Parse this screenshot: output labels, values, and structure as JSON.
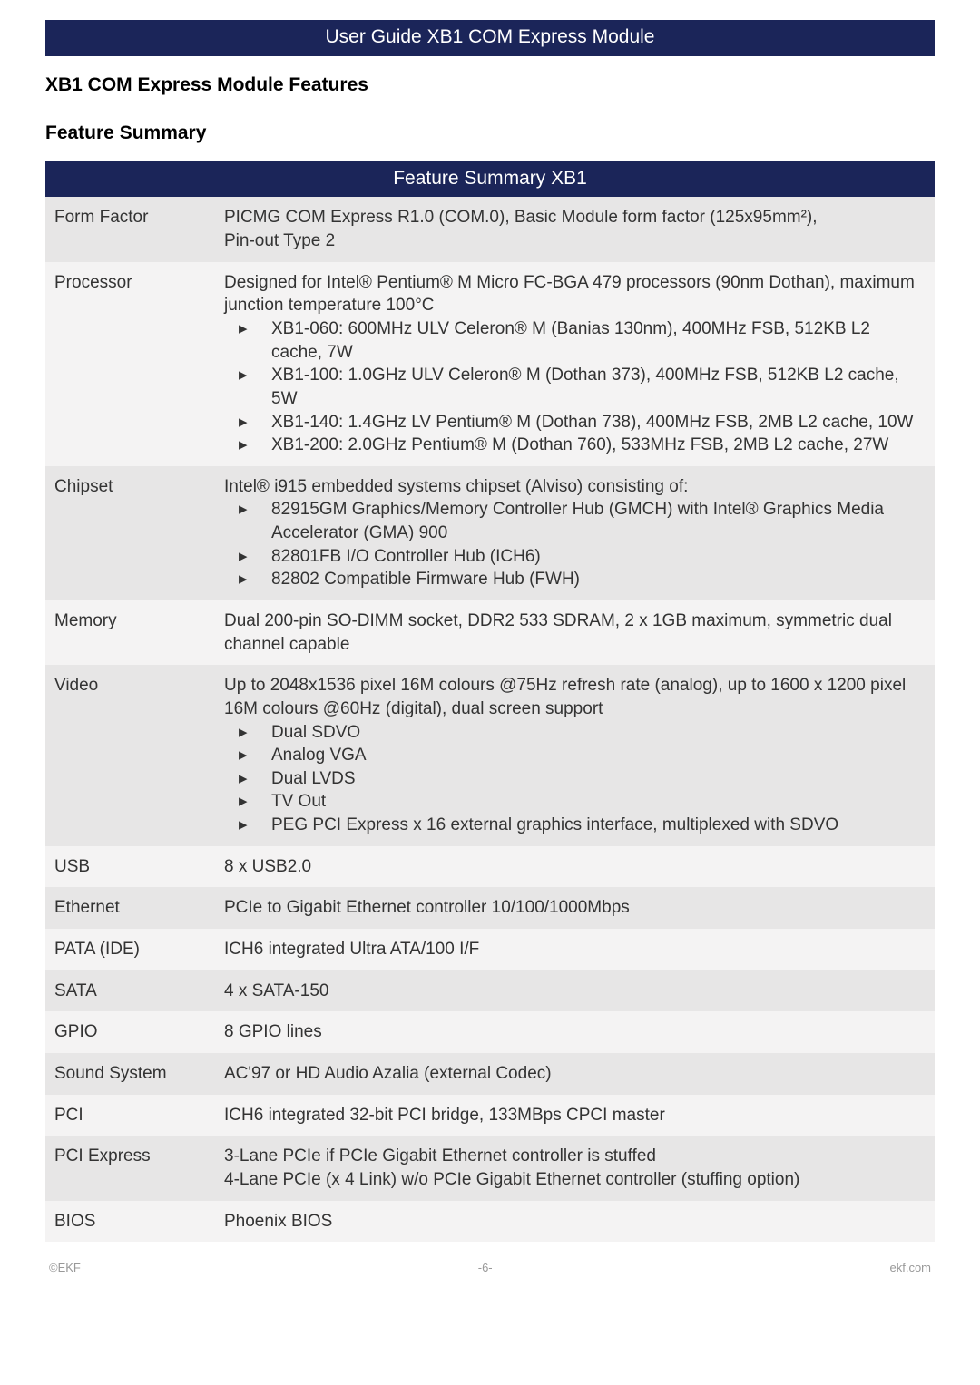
{
  "banner": "User Guide XB1 COM Express Module",
  "section_heading": "XB1 COM Express Module Features",
  "feature_heading": "Feature Summary",
  "table_header": "Feature Summary XB1",
  "rows": [
    {
      "label": "Form Factor",
      "content": "PICMG COM Express R1.0 (COM.0), Basic Module form factor (125x95mm²),\nPin-out Type 2"
    },
    {
      "label": "Processor",
      "intro": "Designed for Intel® Pentium® M Micro FC-BGA 479 processors (90nm Dothan), maximum junction temperature 100°C",
      "bullets": [
        "XB1-060: 600MHz ULV Celeron® M (Banias 130nm), 400MHz FSB, 512KB L2 cache, 7W",
        "XB1-100: 1.0GHz ULV Celeron® M (Dothan 373), 400MHz FSB, 512KB L2 cache, 5W",
        "XB1-140: 1.4GHz LV Pentium® M (Dothan 738), 400MHz FSB, 2MB L2 cache, 10W",
        "XB1-200: 2.0GHz Pentium® M (Dothan 760), 533MHz FSB, 2MB L2 cache, 27W"
      ]
    },
    {
      "label": "Chipset",
      "intro": "Intel® i915 embedded systems chipset (Alviso) consisting of:",
      "bullets": [
        "82915GM Graphics/Memory Controller Hub (GMCH) with Intel® Graphics Media Accelerator (GMA) 900",
        "82801FB I/O Controller Hub (ICH6)",
        "82802 Compatible Firmware Hub (FWH)"
      ]
    },
    {
      "label": "Memory",
      "content": "Dual 200-pin SO-DIMM socket, DDR2 533 SDRAM, 2 x 1GB maximum, symmetric dual channel capable"
    },
    {
      "label": "Video",
      "intro": "Up to 2048x1536 pixel 16M colours @75Hz refresh rate (analog), up to 1600 x 1200 pixel 16M colours @60Hz (digital), dual screen support",
      "bullets": [
        "Dual SDVO",
        "Analog VGA",
        "Dual LVDS",
        "TV Out",
        "PEG PCI Express x 16 external graphics interface, multiplexed with SDVO"
      ]
    },
    {
      "label": "USB",
      "content": "8 x USB2.0"
    },
    {
      "label": "Ethernet",
      "content": "PCIe to Gigabit Ethernet controller 10/100/1000Mbps"
    },
    {
      "label": "PATA (IDE)",
      "content": "ICH6 integrated Ultra ATA/100 I/F"
    },
    {
      "label": "SATA",
      "content": "4 x SATA-150"
    },
    {
      "label": "GPIO",
      "content": "8 GPIO lines"
    },
    {
      "label": "Sound System",
      "content": "AC'97 or HD Audio Azalia (external Codec)"
    },
    {
      "label": "PCI",
      "content": "ICH6 integrated 32-bit PCI bridge, 133MBps CPCI master"
    },
    {
      "label": "PCI Express",
      "content": "3-Lane PCIe if PCIe Gigabit Ethernet controller is stuffed\n4-Lane PCIe (x 4 Link) w/o PCIe Gigabit Ethernet controller (stuffing option)"
    },
    {
      "label": "BIOS",
      "content": "Phoenix BIOS"
    }
  ],
  "footer": {
    "left": "©EKF",
    "center": "-6-",
    "right": "ekf.com"
  },
  "colors": {
    "banner_bg": "#1b2559",
    "banner_fg": "#ffffff",
    "row_even_bg": "#e7e6e6",
    "row_odd_bg": "#f4f3f3",
    "text": "#333333",
    "footer_text": "#999999"
  }
}
